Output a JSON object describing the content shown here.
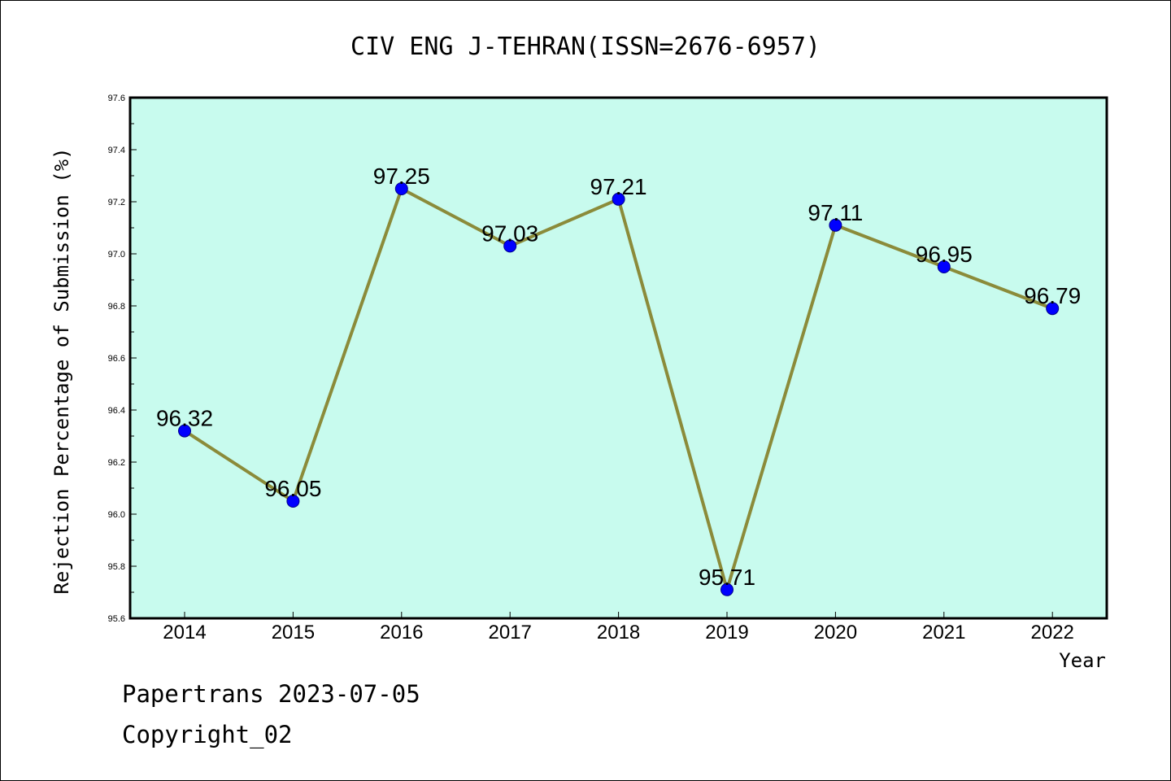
{
  "chart_data": {
    "type": "line",
    "title": "CIV ENG J-TEHRAN(ISSN=2676-6957)",
    "xlabel": "Year",
    "ylabel": "Rejection Percentage of Submission (%)",
    "categories": [
      "2014",
      "2015",
      "2016",
      "2017",
      "2018",
      "2019",
      "2020",
      "2021",
      "2022"
    ],
    "values": [
      96.32,
      96.05,
      97.25,
      97.03,
      97.21,
      95.71,
      97.11,
      96.95,
      96.79
    ],
    "data_labels": [
      "96.32",
      "96.05",
      "97.25",
      "97.03",
      "97.21",
      "95.71",
      "97.11",
      "96.95",
      "96.79"
    ],
    "ylim": [
      95.6,
      97.6
    ],
    "yticks": [
      "95.6",
      "95.8",
      "96.0",
      "96.2",
      "96.4",
      "96.6",
      "96.8",
      "97.0",
      "97.2",
      "97.4",
      "97.6"
    ],
    "grid": false,
    "colors": {
      "plot_background": "#c8fbee",
      "line": "#8b8b3a",
      "marker": "#0000ff"
    }
  },
  "footer": {
    "line1": "Papertrans 2023-07-05",
    "line2": "Copyright_02"
  }
}
